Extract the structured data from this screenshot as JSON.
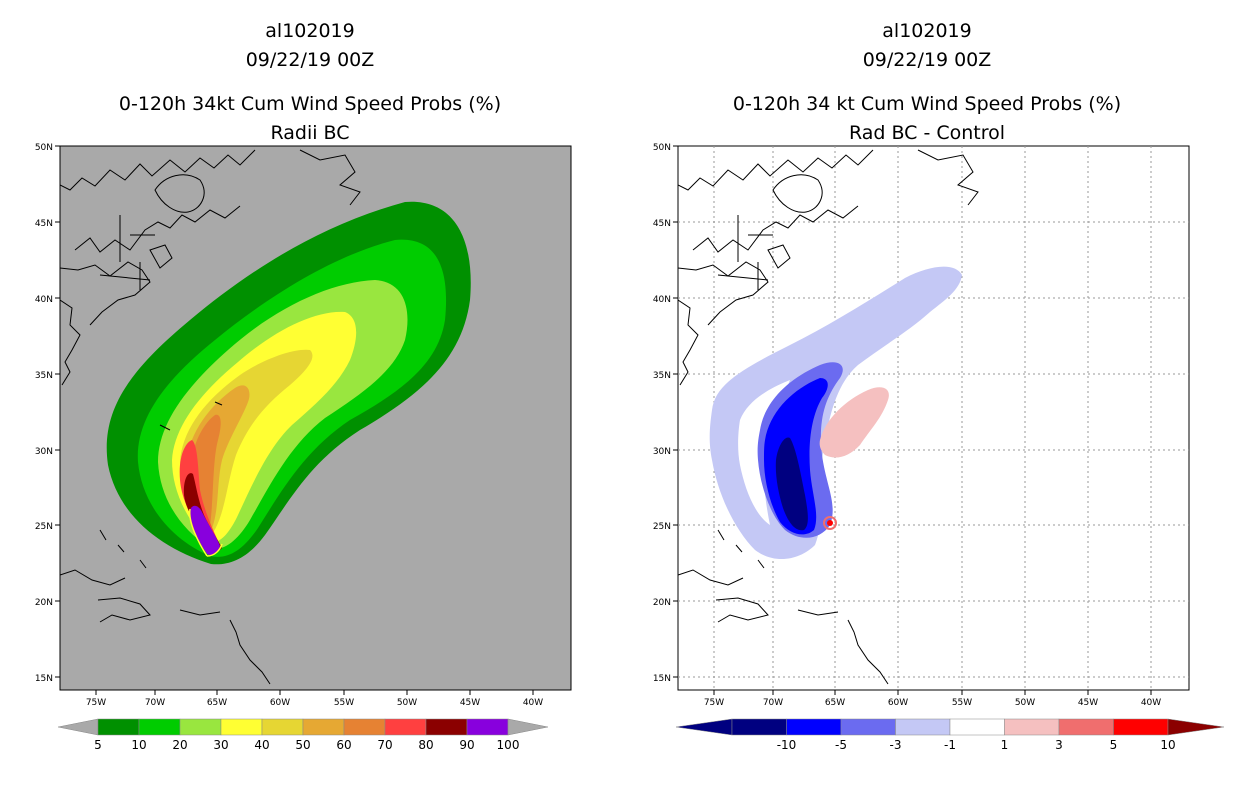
{
  "left_panel": {
    "title_line1": "al102019",
    "title_line2": "09/22/19 00Z",
    "title_line3": "0-120h 34kt Cum Wind Speed Probs (%)",
    "title_line4": "Radii BC",
    "background_color": "#a9a9a9",
    "colorbar": {
      "colors": [
        "#009000",
        "#00cc00",
        "#99e63f",
        "#ffff33",
        "#e6d633",
        "#e6a833",
        "#e68233",
        "#ff4040",
        "#8b0000",
        "#8800dd"
      ],
      "labels": [
        "5",
        "10",
        "20",
        "30",
        "40",
        "50",
        "60",
        "70",
        "80",
        "90",
        "100"
      ]
    }
  },
  "right_panel": {
    "title_line1": "al102019",
    "title_line2": "09/22/19 00Z",
    "title_line3": "0-120h 34 kt Cum Wind Speed Probs (%)",
    "title_line4": "Rad BC - Control",
    "background_color": "#ffffff",
    "colorbar": {
      "colors": [
        "#000080",
        "#0000ff",
        "#6b6bf0",
        "#c4c8f5",
        "#ffffff",
        "#f5c0c0",
        "#f06e6e",
        "#ff0000",
        "#8b0000"
      ],
      "labels": [
        "-10",
        "-5",
        "-3",
        "-1",
        "1",
        "3",
        "5",
        "10"
      ]
    }
  },
  "axes": {
    "lat_labels": [
      "50N",
      "45N",
      "40N",
      "35N",
      "30N",
      "25N",
      "20N",
      "15N"
    ],
    "lon_labels": [
      "75W",
      "70W",
      "65W",
      "60W",
      "55W",
      "50W",
      "45W",
      "40W"
    ]
  },
  "icons": {
    "coastline": "coastline-icon"
  }
}
